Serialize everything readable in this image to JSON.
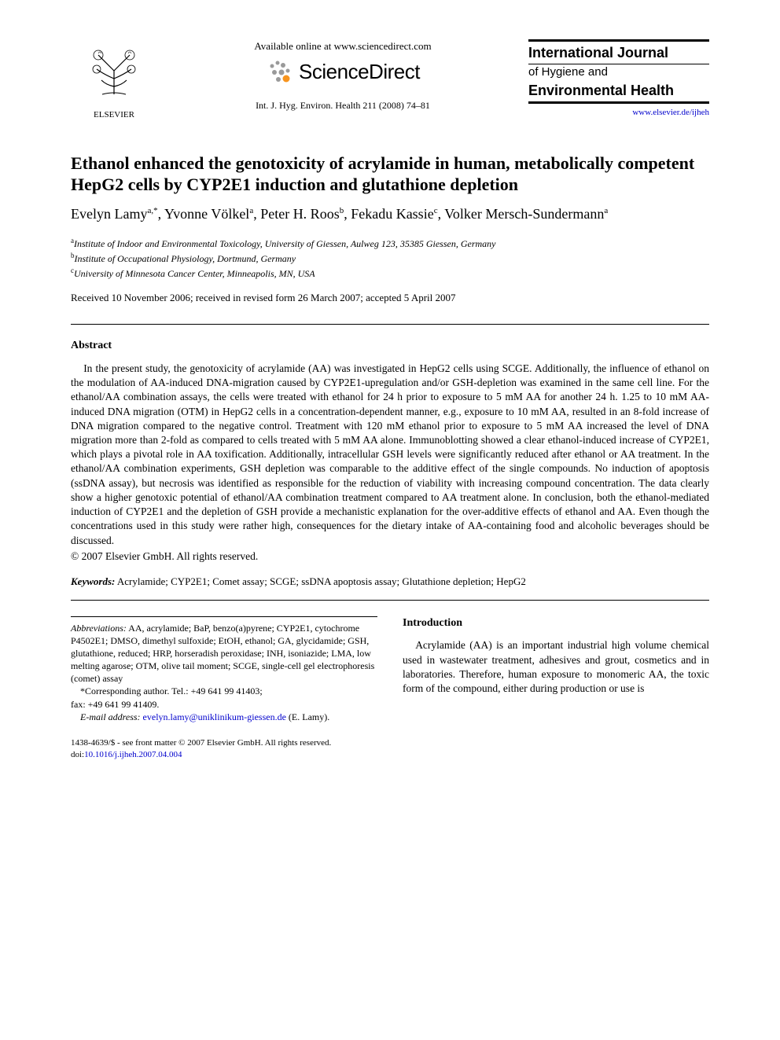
{
  "header": {
    "elsevier_label": "ELSEVIER",
    "available_text": "Available online at www.sciencedirect.com",
    "sciencedirect_label": "ScienceDirect",
    "journal_ref": "Int. J. Hyg. Environ. Health 211 (2008) 74–81",
    "journal_title_line1": "International Journal",
    "journal_title_line2": "of Hygiene and",
    "journal_title_line3": "Environmental Health",
    "journal_url_text": "www.elsevier.de/ijheh"
  },
  "article": {
    "title": "Ethanol enhanced the genotoxicity of acrylamide in human, metabolically competent HepG2 cells by CYP2E1 induction and glutathione depletion",
    "authors_html": "Evelyn Lamy<sup>a,*</sup>, Yvonne Völkel<sup>a</sup>, Peter H. Roos<sup>b</sup>, Fekadu Kassie<sup>c</sup>, Volker Mersch-Sundermann<sup>a</sup>",
    "affiliations": [
      {
        "sup": "a",
        "text": "Institute of Indoor and Environmental Toxicology, University of Giessen, Aulweg 123, 35385 Giessen, Germany"
      },
      {
        "sup": "b",
        "text": "Institute of Occupational Physiology, Dortmund, Germany"
      },
      {
        "sup": "c",
        "text": "University of Minnesota Cancer Center, Minneapolis, MN, USA"
      }
    ],
    "dates": "Received 10 November 2006; received in revised form 26 March 2007; accepted 5 April 2007"
  },
  "abstract": {
    "heading": "Abstract",
    "body": "In the present study, the genotoxicity of acrylamide (AA) was investigated in HepG2 cells using SCGE. Additionally, the influence of ethanol on the modulation of AA-induced DNA-migration caused by CYP2E1-upregulation and/or GSH-depletion was examined in the same cell line. For the ethanol/AA combination assays, the cells were treated with ethanol for 24 h prior to exposure to 5 mM AA for another 24 h. 1.25 to 10 mM AA-induced DNA migration (OTM) in HepG2 cells in a concentration-dependent manner, e.g., exposure to 10 mM AA, resulted in an 8-fold increase of DNA migration compared to the negative control. Treatment with 120 mM ethanol prior to exposure to 5 mM AA increased the level of DNA migration more than 2-fold as compared to cells treated with 5 mM AA alone. Immunoblotting showed a clear ethanol-induced increase of CYP2E1, which plays a pivotal role in AA toxification. Additionally, intracellular GSH levels were significantly reduced after ethanol or AA treatment. In the ethanol/AA combination experiments, GSH depletion was comparable to the additive effect of the single compounds. No induction of apoptosis (ssDNA assay), but necrosis was identified as responsible for the reduction of viability with increasing compound concentration. The data clearly show a higher genotoxic potential of ethanol/AA combination treatment compared to AA treatment alone. In conclusion, both the ethanol-mediated induction of CYP2E1 and the depletion of GSH provide a mechanistic explanation for the over-additive effects of ethanol and AA. Even though the concentrations used in this study were rather high, consequences for the dietary intake of AA-containing food and alcoholic beverages should be discussed.",
    "copyright": "© 2007 Elsevier GmbH. All rights reserved."
  },
  "keywords": {
    "label": "Keywords:",
    "text": " Acrylamide; CYP2E1; Comet assay; SCGE; ssDNA apoptosis assay; Glutathione depletion; HepG2"
  },
  "footnotes": {
    "abbrev_label": "Abbreviations:",
    "abbrev_text": " AA, acrylamide; BaP, benzo(a)pyrene; CYP2E1, cytochrome P4502E1; DMSO, dimethyl sulfoxide; EtOH, ethanol; GA, glycidamide; GSH, glutathione, reduced; HRP, horseradish peroxidase; INH, isoniazide; LMA, low melting agarose; OTM, olive tail moment; SCGE, single-cell gel electrophoresis (comet) assay",
    "corresponding": "*Corresponding author. Tel.: +49 641 99 41403;",
    "fax": "fax: +49 641 99 41409.",
    "email_label": "E-mail address:",
    "email": "evelyn.lamy@uniklinikum-giessen.de",
    "email_attr": " (E. Lamy)."
  },
  "intro": {
    "heading": "Introduction",
    "body": "Acrylamide (AA) is an important industrial high volume chemical used in wastewater treatment, adhesives and grout, cosmetics and in laboratories. Therefore, human exposure to monomeric AA, the toxic form of the compound, either during production or use is"
  },
  "footer": {
    "issn_line": "1438-4639/$ - see front matter © 2007 Elsevier GmbH. All rights reserved.",
    "doi_label": "doi:",
    "doi": "10.1016/j.ijheh.2007.04.004"
  },
  "colors": {
    "link": "#0000cc",
    "sd_orange": "#f7941e",
    "sd_gray": "#9a9a9a",
    "text": "#000000",
    "background": "#ffffff"
  }
}
